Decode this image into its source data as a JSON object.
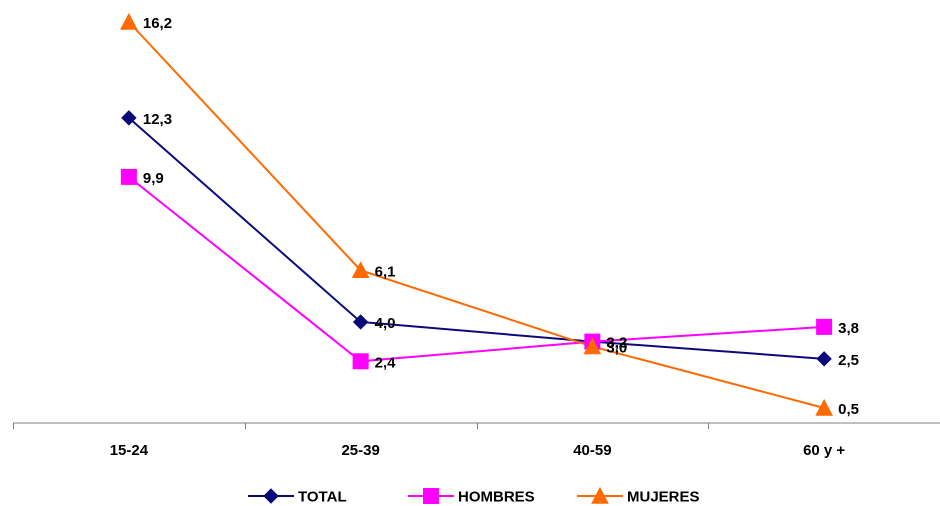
{
  "chart_data": {
    "type": "line",
    "categories": [
      "15-24",
      "25-39",
      "40-59",
      "60 y +"
    ],
    "series": [
      {
        "name": "TOTAL",
        "values": [
          12.3,
          4.0,
          3.2,
          2.5
        ],
        "labels": [
          "12,3",
          "4,0",
          "3,2",
          "2,5"
        ],
        "color": "#0a0a7a",
        "marker": "diamond"
      },
      {
        "name": "HOMBRES",
        "values": [
          9.9,
          2.4,
          3.2,
          3.8
        ],
        "labels": [
          "9,9",
          "2,4",
          "3,2",
          "3,8"
        ],
        "color": "#ff00ff",
        "marker": "square"
      },
      {
        "name": "MUJERES",
        "values": [
          16.2,
          6.1,
          3.0,
          0.5
        ],
        "labels": [
          "16,2",
          "6,1",
          "3,0",
          "0,5"
        ],
        "color": "#ff6a00",
        "marker": "triangle"
      }
    ],
    "ylim": [
      0,
      17
    ],
    "grid": false,
    "legend_position": "bottom"
  }
}
